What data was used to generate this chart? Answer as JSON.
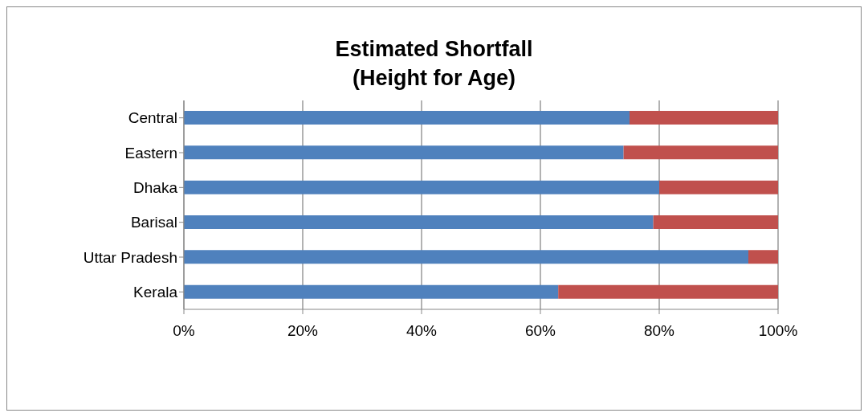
{
  "chart_data": {
    "type": "bar",
    "orientation": "horizontal",
    "stacked": true,
    "title": "Estimated Shortfall\n(Height for Age)",
    "categories": [
      "Central",
      "Eastern",
      "Dhaka",
      "Barisal",
      "Uttar Pradesh",
      "Kerala"
    ],
    "series": [
      {
        "color": "#4f81bd",
        "values": [
          75,
          74,
          80,
          79,
          95,
          63
        ]
      },
      {
        "color": "#c0504d",
        "values": [
          25,
          26,
          20,
          21,
          5,
          37
        ]
      }
    ],
    "xlim": [
      0,
      100
    ],
    "xticks": [
      {
        "value": 0,
        "label": "0%"
      },
      {
        "value": 20,
        "label": "20%"
      },
      {
        "value": 40,
        "label": "40%"
      },
      {
        "value": 60,
        "label": "60%"
      },
      {
        "value": 80,
        "label": "80%"
      },
      {
        "value": 100,
        "label": "100%"
      }
    ],
    "grid": "x",
    "legend": false
  }
}
